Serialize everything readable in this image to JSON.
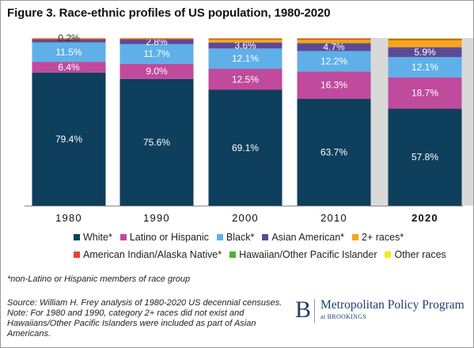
{
  "title": "Figure 3. Race-ethnic profiles of US population, 1980-2020",
  "chart_data": {
    "type": "bar",
    "stacked": true,
    "categories": [
      "1980",
      "1990",
      "2000",
      "2010",
      "2020"
    ],
    "highlighted_category": "2020",
    "ylim": [
      0,
      100
    ],
    "grid": false,
    "legend_position": "bottom",
    "series": [
      {
        "name": "White*",
        "color": "#0e3f5c",
        "values": [
          79.4,
          75.6,
          69.1,
          63.7,
          57.8
        ],
        "labels": [
          "79.4%",
          "75.6%",
          "69.1%",
          "63.7%",
          "57.8%"
        ]
      },
      {
        "name": "Latino or Hispanic",
        "color": "#c04a9c",
        "values": [
          6.4,
          9.0,
          12.5,
          16.3,
          18.7
        ],
        "labels": [
          "6.4%",
          "9.0%",
          "12.5%",
          "16.3%",
          "18.7%"
        ]
      },
      {
        "name": "Black*",
        "color": "#5fb0e8",
        "values": [
          11.5,
          11.7,
          12.1,
          12.2,
          12.1
        ],
        "labels": [
          "11.5%",
          "11.7%",
          "12.1%",
          "12.2%",
          "12.1%"
        ]
      },
      {
        "name": "Asian American*",
        "color": "#5d4a96",
        "values": [
          1.9,
          2.8,
          3.6,
          4.7,
          5.9
        ],
        "labels": [
          "",
          "2.8%",
          "3.6%",
          "4.7%",
          "5.9%"
        ]
      },
      {
        "name": "2+ races*",
        "color": "#f5a51d",
        "values": [
          0,
          0,
          1.6,
          2.0,
          4.1
        ],
        "labels": [
          "",
          "",
          "",
          "",
          ""
        ]
      },
      {
        "name": "American Indian/Alaska Native*",
        "color": "#e8413a",
        "values": [
          0.6,
          0.7,
          0.7,
          0.7,
          0.7
        ],
        "labels": [
          "",
          "",
          "",
          "",
          ""
        ]
      },
      {
        "name": "Hawaiian/Other Pacific Islander",
        "color": "#46b531",
        "values": [
          0,
          0,
          0.1,
          0.2,
          0.2
        ],
        "labels": [
          "",
          "",
          "",
          "",
          ""
        ]
      },
      {
        "name": "Other races",
        "color": "#f3ea1c",
        "values": [
          0.2,
          0.2,
          0.3,
          0.2,
          0.5
        ],
        "labels": [
          "0.2%",
          "",
          "",
          "",
          ""
        ]
      }
    ]
  },
  "footnote": "*non-Latino or Hispanic members of race group",
  "source": "Source: William H. Frey analysis of 1980-2020 US decennial censuses. Note: For 1980 and 1990, category 2+ races did not exist and Hawaiians/Other Pacific Islanders were included as part of Asian Americans.",
  "logo": {
    "mark": "B",
    "name": "Metropolitan Policy Program",
    "sub": "at BROOKINGS"
  }
}
